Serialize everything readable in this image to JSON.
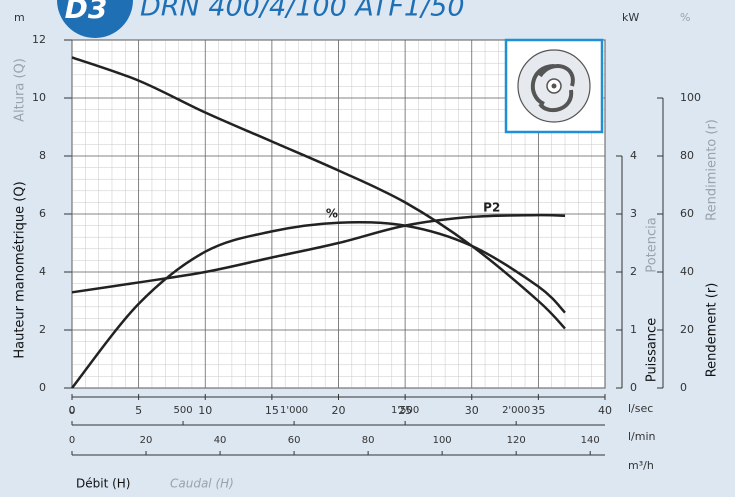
{
  "chart_data": {
    "type": "line",
    "badge": "D3",
    "title": "DRN 400/4/100 ATF1/50",
    "x": [
      0,
      5,
      10,
      15,
      20,
      25,
      30,
      35,
      37
    ],
    "xlim": [
      0,
      40
    ],
    "xticks": [
      0,
      5,
      10,
      15,
      20,
      25,
      30,
      35,
      40
    ],
    "xunit": "l/sec",
    "x2lim": [
      0,
      2400
    ],
    "x2ticks": [
      0,
      500,
      {
        "value": 1000,
        "label": "1'000"
      },
      {
        "value": 1500,
        "label": "1'500"
      },
      {
        "value": 2000,
        "label": "2'000"
      }
    ],
    "x2unit": "l/min",
    "x3lim": [
      0,
      144
    ],
    "x3ticks": [
      0,
      20,
      40,
      60,
      80,
      100,
      120,
      140
    ],
    "x3unit": "m³/h",
    "xlabel": "Débit (H)",
    "xlabel_alt": "Caudal (H)",
    "ylim": [
      0,
      12
    ],
    "yticks": [
      0,
      2,
      4,
      6,
      8,
      10,
      12
    ],
    "yunit": "m",
    "ylabel": "Hauteur manométrique (Q)",
    "ylabel_alt": "Altura (Q)",
    "y2lim": [
      0,
      6
    ],
    "y2ticks": [
      0,
      1,
      2,
      3,
      4
    ],
    "y2unit": "kW",
    "y2label": "Puissance",
    "y2label_alt": "Potencia",
    "y3lim": [
      0,
      120
    ],
    "y3ticks": [
      0,
      20,
      40,
      60,
      80,
      100
    ],
    "y3unit": "%",
    "y3label": "Rendement (r)",
    "y3label_alt": "Rendimiento (r)",
    "grid": true,
    "series": [
      {
        "color": "#222222",
        "axis": "y",
        "values": [
          11.4,
          10.6,
          9.5,
          8.5,
          7.5,
          6.4,
          4.9,
          3.0,
          2.05
        ]
      },
      {
        "name": "P2",
        "color": "#222222",
        "axis": "y2",
        "values": [
          1.65,
          1.82,
          2.0,
          2.25,
          2.5,
          2.8,
          2.95,
          2.98,
          2.97
        ]
      },
      {
        "name": "%",
        "color": "#222222",
        "axis": "y3",
        "values": [
          0,
          29,
          47,
          54,
          57,
          56,
          49,
          35,
          26
        ]
      }
    ]
  }
}
